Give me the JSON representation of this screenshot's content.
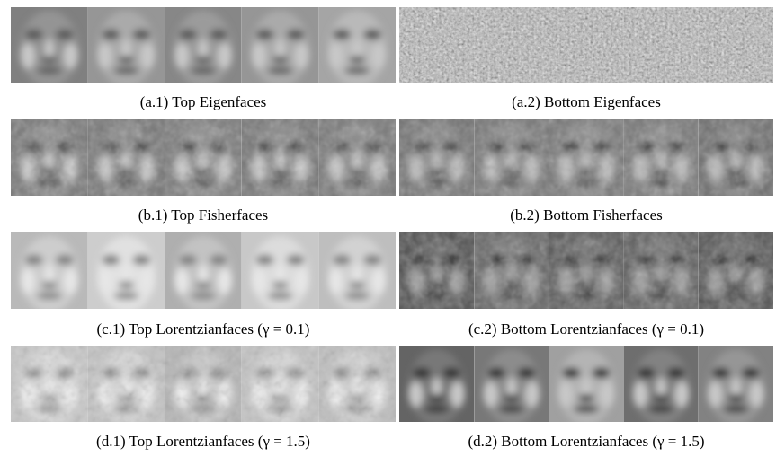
{
  "panels": [
    {
      "caption": "(a.1) Top Eigenfaces"
    },
    {
      "caption": "(a.2) Bottom Eigenfaces"
    },
    {
      "caption": "(b.1) Top Fisherfaces"
    },
    {
      "caption": "(b.2) Bottom Fisherfaces"
    },
    {
      "caption": "(c.1) Top Lorentzianfaces (γ = 0.1)"
    },
    {
      "caption": "(c.2) Bottom Lorentzianfaces (γ = 0.1)"
    },
    {
      "caption": "(d.1) Top Lorentzianfaces (γ = 1.5)"
    },
    {
      "caption": "(d.2) Bottom Lorentzianfaces (γ = 1.5)"
    }
  ]
}
